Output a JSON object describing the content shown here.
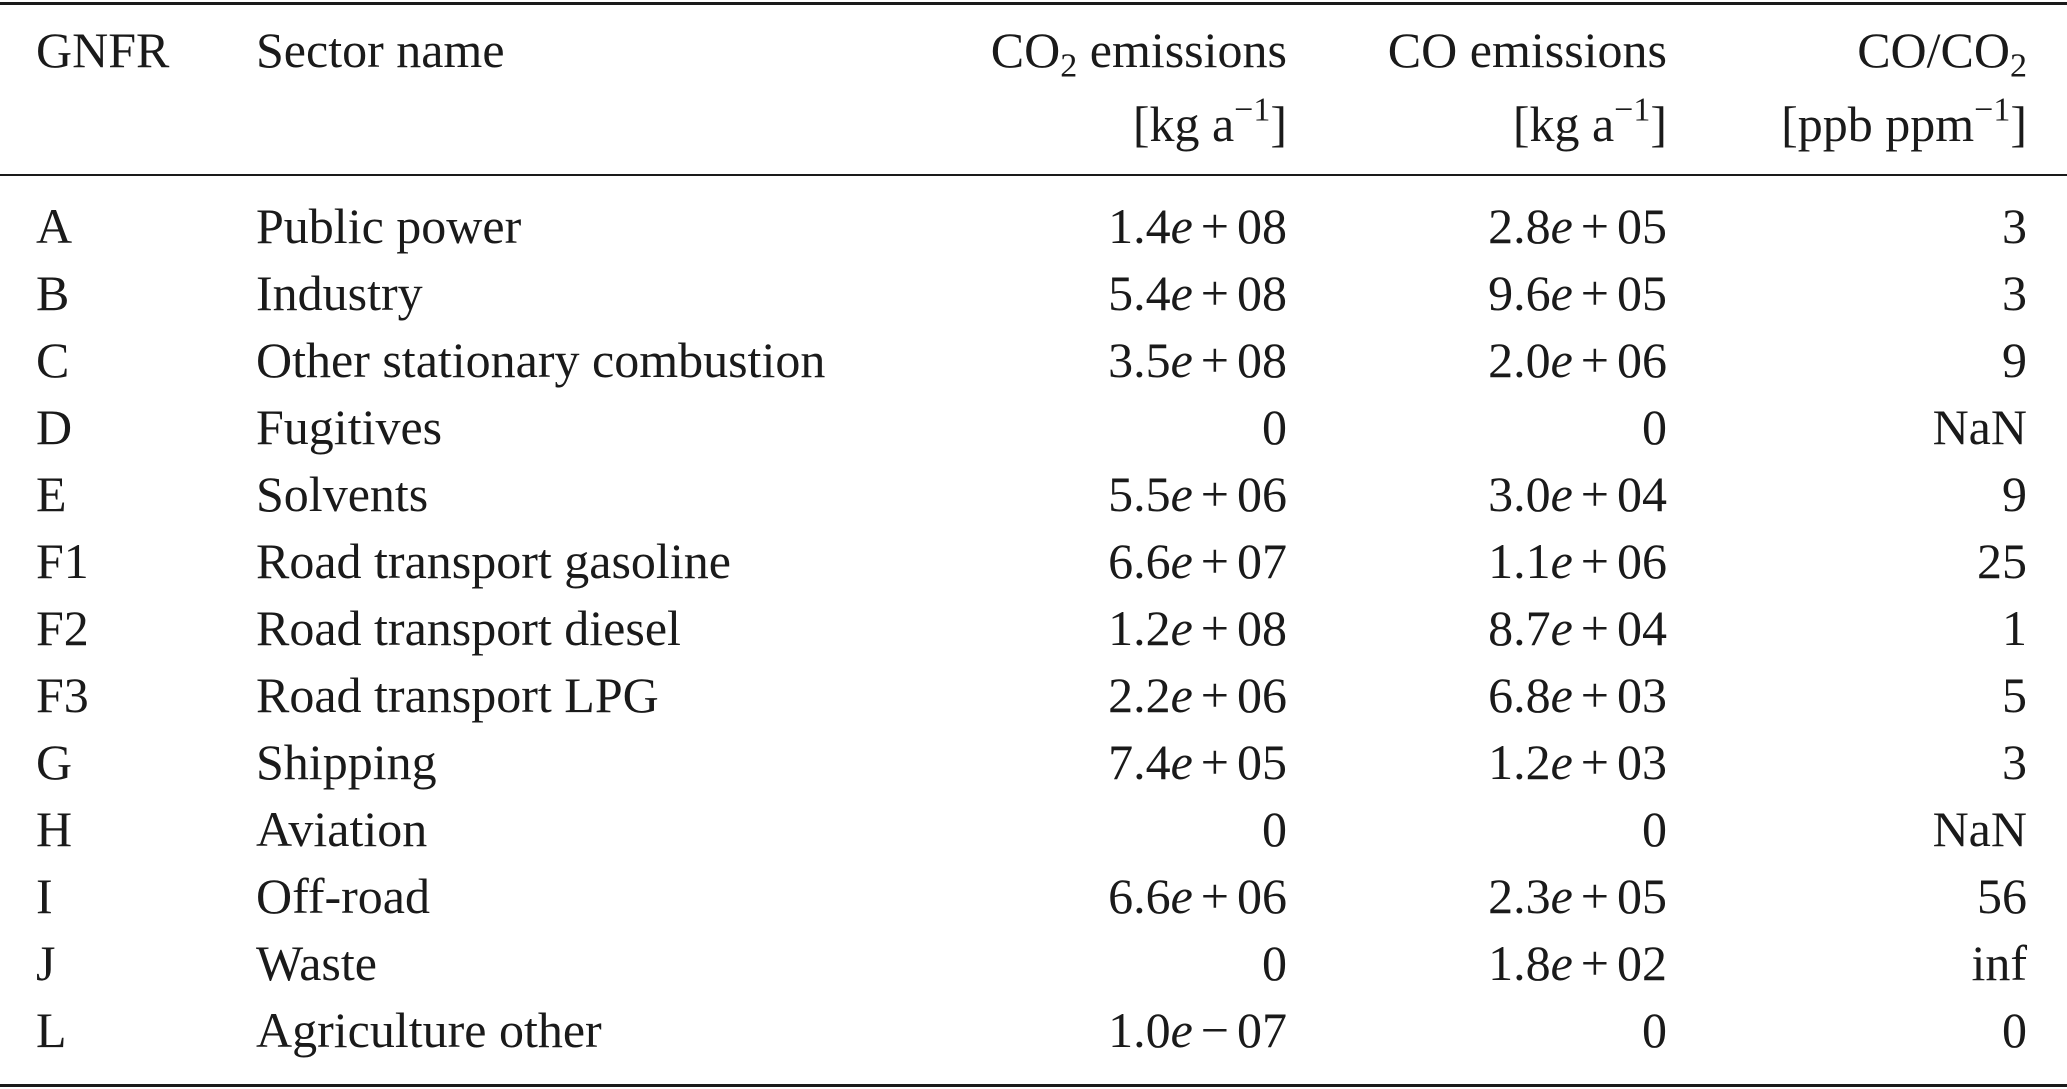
{
  "header": {
    "gnfr": "GNFR",
    "sector": "Sector name",
    "co2": {
      "prefix": "CO",
      "sub": "2",
      "suffix": " emissions"
    },
    "co": "CO emissions",
    "ratio": {
      "prefix": "CO/CO",
      "sub": "2"
    },
    "unit_emissions": {
      "base": "[kg a",
      "sup": "−1",
      "close": "]"
    },
    "unit_ratio": {
      "base": "[ppb ppm",
      "sup": "−1",
      "close": "]"
    }
  },
  "rows": [
    {
      "gnfr": "A",
      "sector": "Public power",
      "co2": [
        "1.4",
        "e",
        "+",
        "08"
      ],
      "co": [
        "2.8",
        "e",
        "+",
        "05"
      ],
      "ratio": "3"
    },
    {
      "gnfr": "B",
      "sector": "Industry",
      "co2": [
        "5.4",
        "e",
        "+",
        "08"
      ],
      "co": [
        "9.6",
        "e",
        "+",
        "05"
      ],
      "ratio": "3"
    },
    {
      "gnfr": "C",
      "sector": "Other stationary combustion",
      "co2": [
        "3.5",
        "e",
        "+",
        "08"
      ],
      "co": [
        "2.0",
        "e",
        "+",
        "06"
      ],
      "ratio": "9"
    },
    {
      "gnfr": "D",
      "sector": "Fugitives",
      "co2": "0",
      "co": "0",
      "ratio": "NaN"
    },
    {
      "gnfr": "E",
      "sector": "Solvents",
      "co2": [
        "5.5",
        "e",
        "+",
        "06"
      ],
      "co": [
        "3.0",
        "e",
        "+",
        "04"
      ],
      "ratio": "9"
    },
    {
      "gnfr": "F1",
      "sector": "Road transport gasoline",
      "co2": [
        "6.6",
        "e",
        "+",
        "07"
      ],
      "co": [
        "1.1",
        "e",
        "+",
        "06"
      ],
      "ratio": "25"
    },
    {
      "gnfr": "F2",
      "sector": "Road transport diesel",
      "co2": [
        "1.2",
        "e",
        "+",
        "08"
      ],
      "co": [
        "8.7",
        "e",
        "+",
        "04"
      ],
      "ratio": "1"
    },
    {
      "gnfr": "F3",
      "sector": "Road transport LPG",
      "co2": [
        "2.2",
        "e",
        "+",
        "06"
      ],
      "co": [
        "6.8",
        "e",
        "+",
        "03"
      ],
      "ratio": "5"
    },
    {
      "gnfr": "G",
      "sector": "Shipping",
      "co2": [
        "7.4",
        "e",
        "+",
        "05"
      ],
      "co": [
        "1.2",
        "e",
        "+",
        "03"
      ],
      "ratio": "3"
    },
    {
      "gnfr": "H",
      "sector": "Aviation",
      "co2": "0",
      "co": "0",
      "ratio": "NaN"
    },
    {
      "gnfr": "I",
      "sector": "Off-road",
      "co2": [
        "6.6",
        "e",
        "+",
        "06"
      ],
      "co": [
        "2.3",
        "e",
        "+",
        "05"
      ],
      "ratio": "56"
    },
    {
      "gnfr": "J",
      "sector": "Waste",
      "co2": "0",
      "co": [
        "1.8",
        "e",
        "+",
        "02"
      ],
      "ratio": "inf"
    },
    {
      "gnfr": "L",
      "sector": "Agriculture other",
      "co2": [
        "1.0",
        "e",
        "−",
        "07"
      ],
      "co": "0",
      "ratio": "0"
    }
  ]
}
